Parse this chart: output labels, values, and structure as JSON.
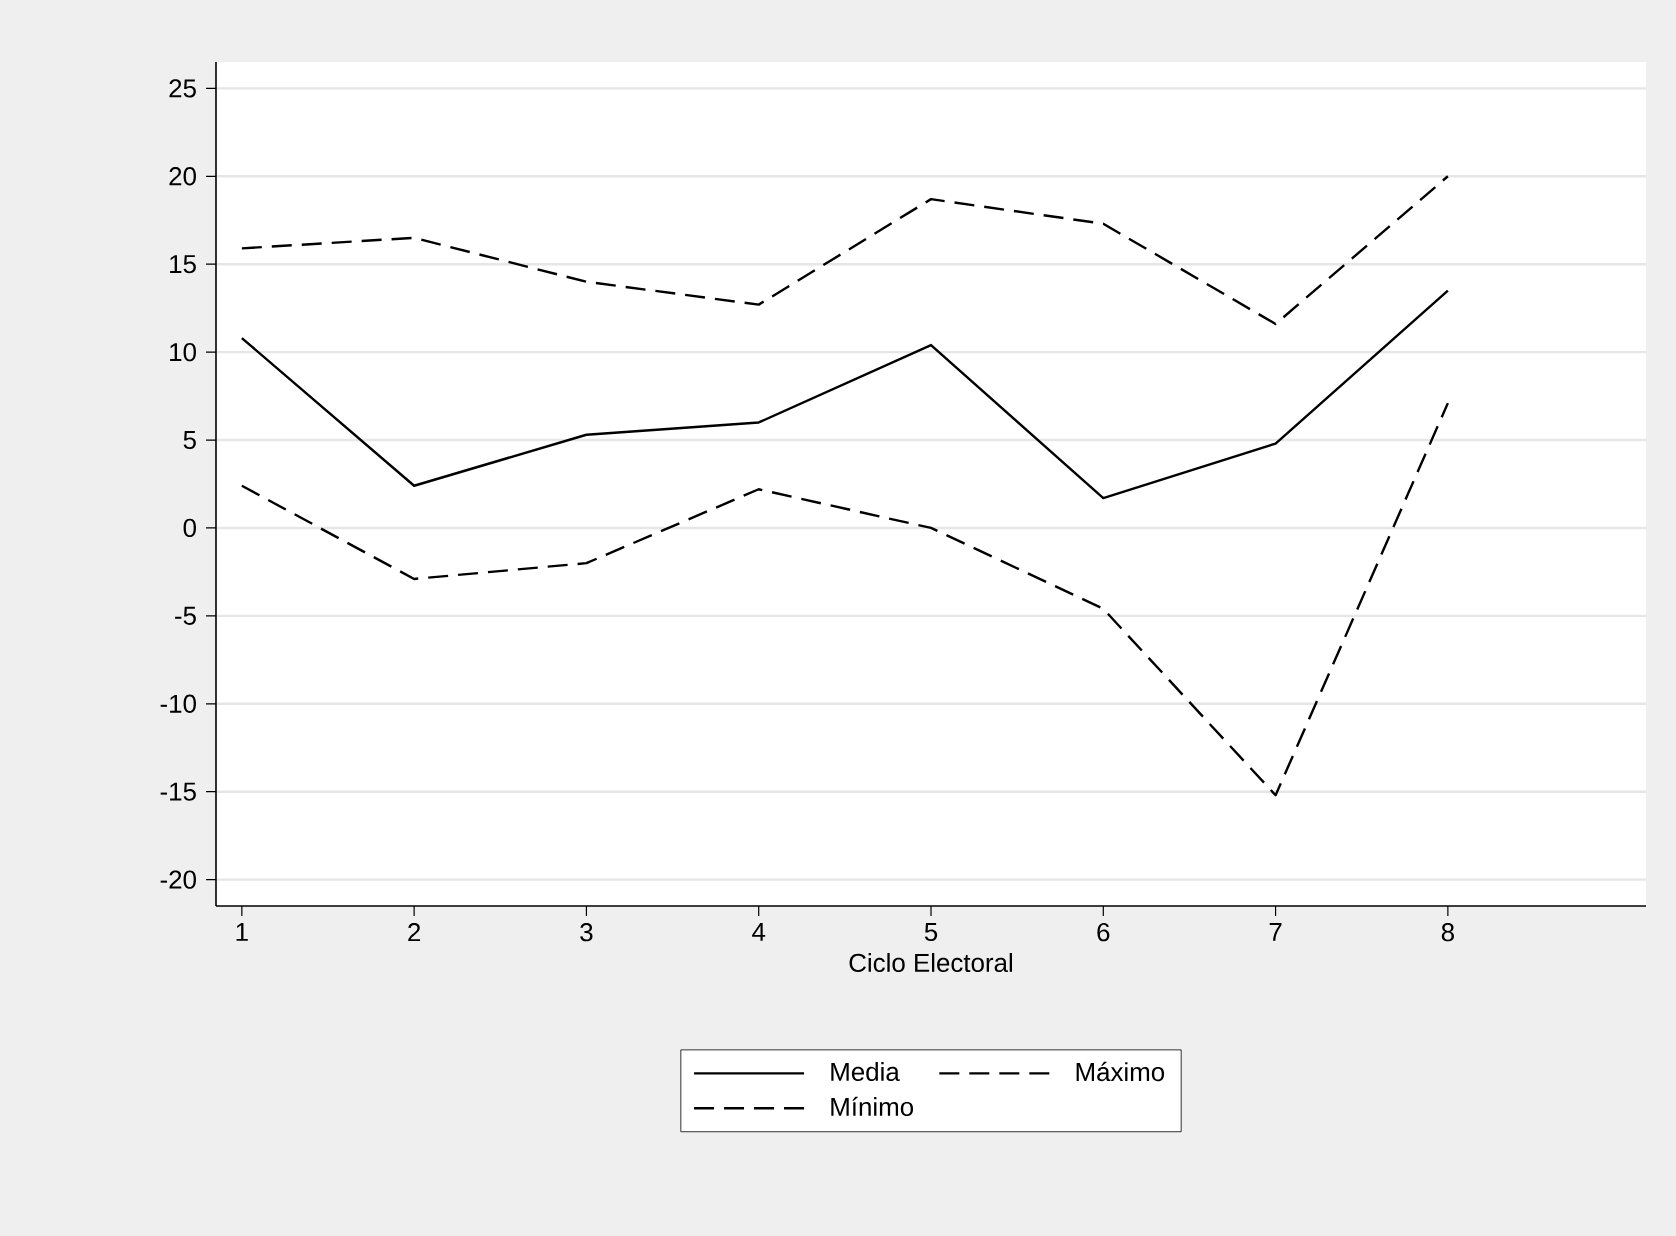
{
  "chart_data": {
    "type": "line",
    "xlabel": "Ciclo Electoral",
    "x": [
      1,
      2,
      3,
      4,
      5,
      6,
      7,
      8
    ],
    "series": [
      {
        "name": "Media",
        "color": "#000000",
        "line_style": "solid",
        "values": [
          10.8,
          2.4,
          5.3,
          6.0,
          10.4,
          1.7,
          4.8,
          13.5
        ]
      },
      {
        "name": "Máximo",
        "color": "#000000",
        "line_style": "dashed",
        "values": [
          15.9,
          16.5,
          14.0,
          12.7,
          18.7,
          17.3,
          11.6,
          20.0
        ]
      },
      {
        "name": "Mínimo",
        "color": "#000000",
        "line_style": "dashed",
        "values": [
          2.4,
          -2.9,
          -2.0,
          2.2,
          0.0,
          -4.6,
          -15.2,
          7.1
        ]
      }
    ],
    "xlim": [
      0.85,
      9.15
    ],
    "ylim": [
      -21.5,
      26.5
    ],
    "xticks": [
      1,
      2,
      3,
      4,
      5,
      6,
      7,
      8
    ],
    "yticks": [
      -20,
      -15,
      -10,
      -5,
      0,
      5,
      10,
      15,
      20,
      25
    ],
    "grid": "y",
    "legend": "bottom",
    "marker": "none"
  }
}
